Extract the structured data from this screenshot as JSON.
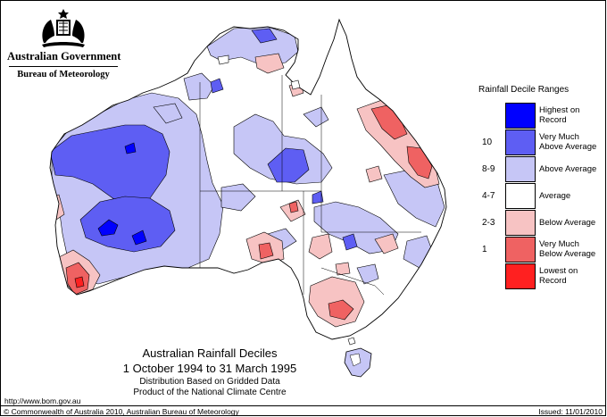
{
  "logo": {
    "government": "Australian Government",
    "bureau": "Bureau of Meteorology",
    "crest_icon": "coat-of-arms-icon"
  },
  "legend": {
    "title": "Rainfall Decile Ranges",
    "items": [
      {
        "range": "",
        "label_lines": [
          "Highest on",
          "Record"
        ],
        "color": "#0000ff"
      },
      {
        "range": "10",
        "label_lines": [
          "Very Much",
          "Above Average"
        ],
        "color": "#5e5ef3"
      },
      {
        "range": "8-9",
        "label_lines": [
          "Above Average"
        ],
        "color": "#c6c6f6"
      },
      {
        "range": "4-7",
        "label_lines": [
          "Average"
        ],
        "color": "#ffffff"
      },
      {
        "range": "2-3",
        "label_lines": [
          "Below Average"
        ],
        "color": "#f7c3c3"
      },
      {
        "range": "1",
        "label_lines": [
          "Very Much",
          "Below Average"
        ],
        "color": "#ef6262"
      },
      {
        "range": "",
        "label_lines": [
          "Lowest on",
          "Record"
        ],
        "color": "#ff2020"
      }
    ]
  },
  "title": {
    "main": "Australian Rainfall Deciles",
    "dates": "1 October 1994 to 31 March 1995",
    "line1": "Distribution Based on Gridded Data",
    "line2": "Product of the National Climate Centre"
  },
  "footer": {
    "url": "http://www.bom.gov.au",
    "copyright": "© Commonwealth of Australia 2010, Australian Bureau of Meteorology",
    "issued": "Issued: 11/01/2010"
  }
}
